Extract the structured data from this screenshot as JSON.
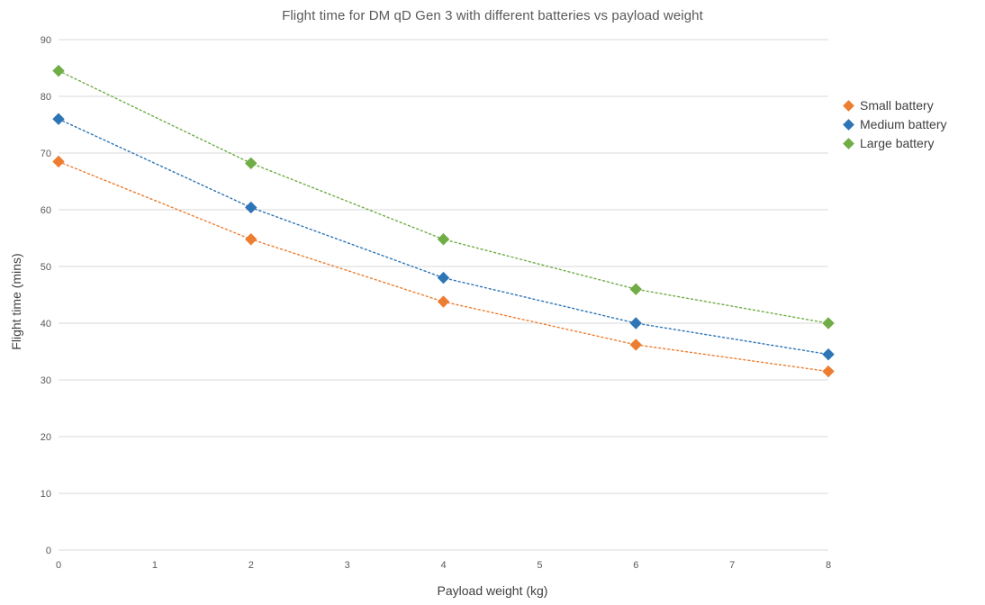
{
  "chart_data": {
    "type": "scatter",
    "title": "Flight time for DM qD Gen 3 with different batteries vs payload weight",
    "xlabel": "Payload weight (kg)",
    "ylabel": "Flight time (mins)",
    "x": [
      0,
      2,
      4,
      6,
      8
    ],
    "xlim": [
      0,
      8
    ],
    "ylim": [
      0,
      90
    ],
    "xticks": [
      0,
      1,
      2,
      3,
      4,
      5,
      6,
      7,
      8
    ],
    "yticks": [
      0,
      10,
      20,
      30,
      40,
      50,
      60,
      70,
      80,
      90
    ],
    "grid": "horizontal",
    "grid_color": "#d9d9d9",
    "legend_position": "right",
    "marker": "diamond",
    "line_style": "dotted",
    "series": [
      {
        "id": "small-battery",
        "name": "Small battery",
        "color": "#ED7D31",
        "values": [
          68.5,
          54.8,
          43.8,
          36.2,
          31.5
        ]
      },
      {
        "id": "medium-battery",
        "name": "Medium battery",
        "color": "#2E75B6",
        "values": [
          76.0,
          60.4,
          48.0,
          40.0,
          34.5
        ]
      },
      {
        "id": "large-battery",
        "name": "Large battery",
        "color": "#70AD47",
        "values": [
          84.5,
          68.2,
          54.8,
          46.0,
          40.0
        ]
      }
    ]
  }
}
